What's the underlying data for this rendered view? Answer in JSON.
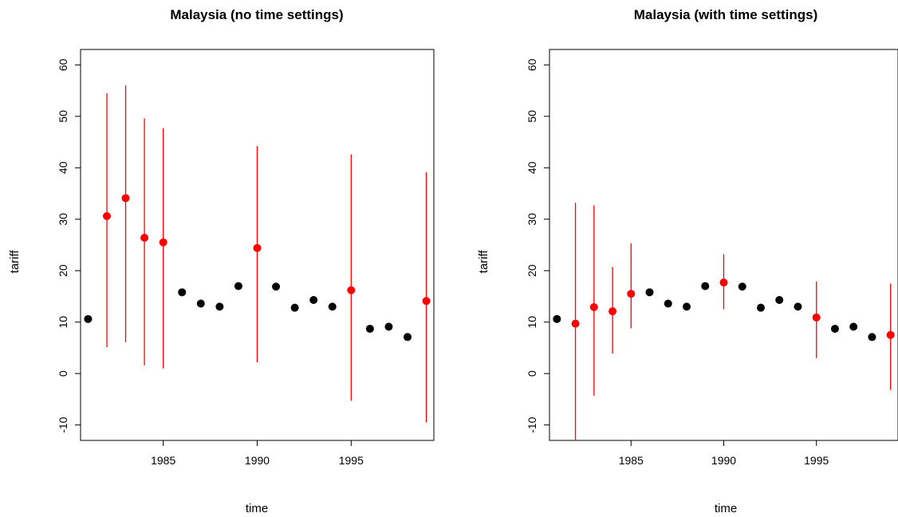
{
  "chart_data": [
    {
      "type": "scatter",
      "title": "Malaysia (no time settings)",
      "xlabel": "time",
      "ylabel": "tariff",
      "xlim": [
        1980.6,
        1999.4
      ],
      "ylim": [
        -13,
        63
      ],
      "xticks": [
        1985,
        1990,
        1995
      ],
      "yticks": [
        -10,
        0,
        10,
        20,
        30,
        40,
        50,
        60
      ],
      "colors": {
        "observed": "#000000",
        "imputed": "#ff0000"
      },
      "observed": [
        {
          "x": 1981,
          "y": 10.6
        },
        {
          "x": 1986,
          "y": 15.8
        },
        {
          "x": 1987,
          "y": 13.6
        },
        {
          "x": 1988,
          "y": 13.0
        },
        {
          "x": 1989,
          "y": 17.0
        },
        {
          "x": 1991,
          "y": 16.9
        },
        {
          "x": 1992,
          "y": 12.8
        },
        {
          "x": 1993,
          "y": 14.3
        },
        {
          "x": 1994,
          "y": 13.0
        },
        {
          "x": 1996,
          "y": 8.7
        },
        {
          "x": 1997,
          "y": 9.1
        },
        {
          "x": 1998,
          "y": 7.1
        }
      ],
      "imputed": [
        {
          "x": 1982,
          "y": 30.6,
          "lower": 5.1,
          "upper": 54.5
        },
        {
          "x": 1983,
          "y": 34.1,
          "lower": 6.1,
          "upper": 56.0
        },
        {
          "x": 1984,
          "y": 26.4,
          "lower": 1.6,
          "upper": 49.6
        },
        {
          "x": 1985,
          "y": 25.5,
          "lower": 1.0,
          "upper": 47.7
        },
        {
          "x": 1990,
          "y": 24.4,
          "lower": 2.2,
          "upper": 44.2
        },
        {
          "x": 1995,
          "y": 16.2,
          "lower": -5.3,
          "upper": 42.6
        },
        {
          "x": 1999,
          "y": 14.1,
          "lower": -9.5,
          "upper": 39.1
        }
      ]
    },
    {
      "type": "scatter",
      "title": "Malaysia (with time settings)",
      "xlabel": "time",
      "ylabel": "tariff",
      "xlim": [
        1980.6,
        1999.4
      ],
      "ylim": [
        -13,
        63
      ],
      "xticks": [
        1985,
        1990,
        1995
      ],
      "yticks": [
        -10,
        0,
        10,
        20,
        30,
        40,
        50,
        60
      ],
      "colors": {
        "observed": "#000000",
        "imputed": "#ff0000"
      },
      "observed": [
        {
          "x": 1981,
          "y": 10.6
        },
        {
          "x": 1986,
          "y": 15.8
        },
        {
          "x": 1987,
          "y": 13.6
        },
        {
          "x": 1988,
          "y": 13.0
        },
        {
          "x": 1989,
          "y": 17.0
        },
        {
          "x": 1991,
          "y": 16.9
        },
        {
          "x": 1992,
          "y": 12.8
        },
        {
          "x": 1993,
          "y": 14.3
        },
        {
          "x": 1994,
          "y": 13.0
        },
        {
          "x": 1996,
          "y": 8.7
        },
        {
          "x": 1997,
          "y": 9.1
        },
        {
          "x": 1998,
          "y": 7.1
        }
      ],
      "imputed": [
        {
          "x": 1982,
          "y": 9.7,
          "lower": -13.0,
          "upper": 33.2
        },
        {
          "x": 1983,
          "y": 12.9,
          "lower": -4.3,
          "upper": 32.7
        },
        {
          "x": 1984,
          "y": 12.1,
          "lower": 3.9,
          "upper": 20.7
        },
        {
          "x": 1985,
          "y": 15.5,
          "lower": 8.8,
          "upper": 25.3
        },
        {
          "x": 1990,
          "y": 17.7,
          "lower": 12.5,
          "upper": 23.2
        },
        {
          "x": 1995,
          "y": 10.9,
          "lower": 3.0,
          "upper": 17.9
        },
        {
          "x": 1999,
          "y": 7.5,
          "lower": -3.2,
          "upper": 17.5
        }
      ]
    }
  ]
}
